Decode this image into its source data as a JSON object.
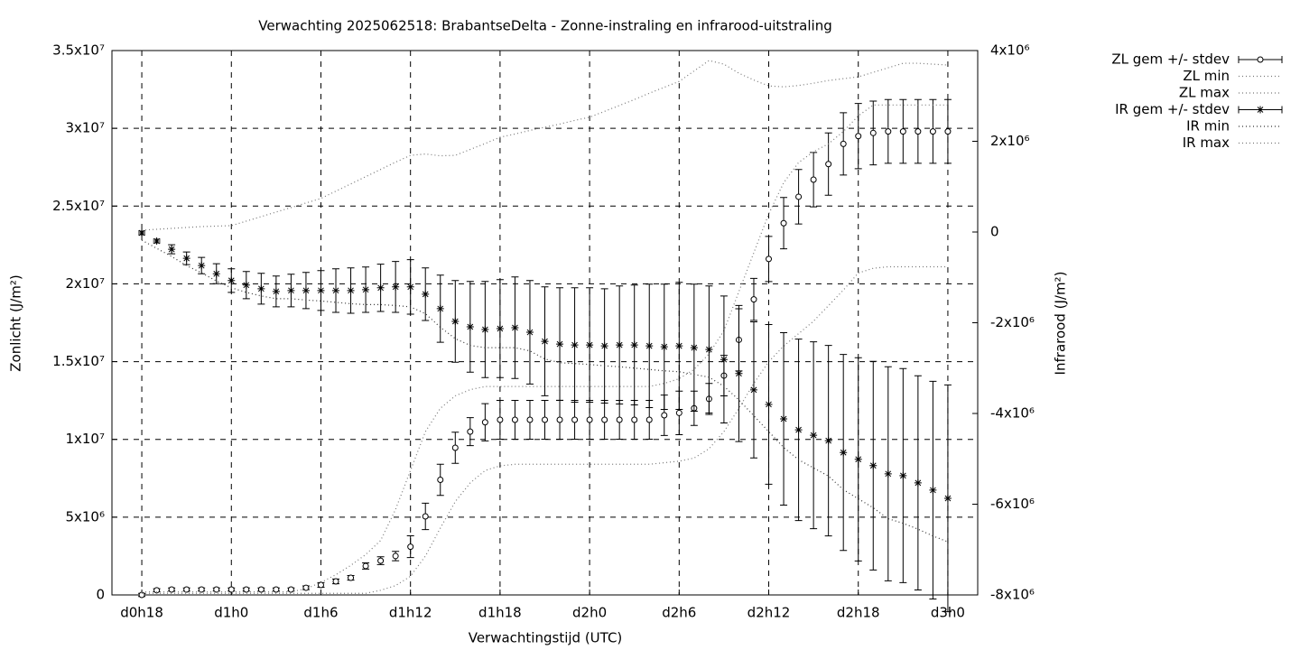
{
  "chart_data": {
    "type": "errorbar-line",
    "title": "Verwachting 2025062518: BrabantseDelta - Zonne-instraling en infrarood-uitstraling",
    "x_label": "Verwachtingstijd (UTC)",
    "y_label": "Zonlicht (J/m²)",
    "y2_label": "Infrarood (J/m²)",
    "grid": true,
    "legend": "outside-top-right",
    "x": [
      18,
      19,
      20,
      21,
      22,
      23,
      24,
      25,
      26,
      27,
      28,
      29,
      30,
      31,
      32,
      33,
      34,
      35,
      36,
      37,
      38,
      39,
      40,
      41,
      42,
      43,
      44,
      45,
      46,
      47,
      48,
      49,
      50,
      51,
      52,
      53,
      54,
      55,
      56,
      57,
      58,
      59,
      60,
      61,
      62,
      63,
      64,
      65,
      66,
      67,
      68,
      69,
      70,
      71,
      72
    ],
    "xlim": [
      16,
      74
    ],
    "xticks": [
      {
        "value": 18,
        "label": "d0h18"
      },
      {
        "value": 24,
        "label": "d1h0"
      },
      {
        "value": 30,
        "label": "d1h6"
      },
      {
        "value": 36,
        "label": "d1h12"
      },
      {
        "value": 42,
        "label": "d1h18"
      },
      {
        "value": 48,
        "label": "d2h0"
      },
      {
        "value": 54,
        "label": "d2h6"
      },
      {
        "value": 60,
        "label": "d2h12"
      },
      {
        "value": 66,
        "label": "d2h18"
      },
      {
        "value": 72,
        "label": "d3h0"
      }
    ],
    "ylim": [
      0,
      35000000.0
    ],
    "yticks": [
      0,
      {
        "value": 5000000.0,
        "label": "5x10⁶"
      },
      {
        "value": 10000000.0,
        "label": "1x10⁷"
      },
      {
        "value": 15000000.0,
        "label": "1.5x10⁷"
      },
      {
        "value": 20000000.0,
        "label": "2x10⁷"
      },
      {
        "value": 25000000.0,
        "label": "2.5x10⁷"
      },
      {
        "value": 30000000.0,
        "label": "3x10⁷"
      },
      {
        "value": 35000000.0,
        "label": "3.5x10⁷"
      }
    ],
    "y2lim": [
      -8000000.0,
      4000000.0
    ],
    "y2ticks": [
      {
        "value": -8000000.0,
        "label": "-8x10⁶"
      },
      {
        "value": -6000000.0,
        "label": "-6x10⁶"
      },
      {
        "value": -4000000.0,
        "label": "-4x10⁶"
      },
      {
        "value": -2000000.0,
        "label": "-2x10⁶"
      },
      0,
      {
        "value": 2000000.0,
        "label": "2x10⁶"
      },
      {
        "value": 4000000.0,
        "label": "4x10⁶"
      }
    ],
    "series": [
      {
        "name": "ZL gem +/- stdev",
        "color": "#000000",
        "marker": "circle",
        "values": [
          0,
          300000.0,
          350000.0,
          350000.0,
          350000.0,
          350000.0,
          350000.0,
          350000.0,
          350000.0,
          350000.0,
          350000.0,
          460000.0,
          640000.0,
          870000.0,
          1100000.0,
          1860000.0,
          2200000.0,
          2500000.0,
          3100000.0,
          5050000.0,
          7400000.0,
          9460000.0,
          10500000.0,
          11100000.0,
          11260000.0,
          11260000.0,
          11260000.0,
          11260000.0,
          11260000.0,
          11260000.0,
          11260000.0,
          11260000.0,
          11260000.0,
          11260000.0,
          11260000.0,
          11550000.0,
          11700000.0,
          12000000.0,
          12600000.0,
          14100000.0,
          16400000.0,
          19000000.0,
          21600000.0,
          23900000.0,
          25600000.0,
          26700000.0,
          27700000.0,
          29000000.0,
          29500000.0,
          29700000.0,
          29800000.0,
          29800000.0,
          29800000.0,
          29800000.0,
          29800000.0
        ],
        "errors": [
          100000.0,
          100000.0,
          100000.0,
          100000.0,
          100000.0,
          100000.0,
          100000.0,
          100000.0,
          100000.0,
          100000.0,
          100000.0,
          120000.0,
          150000.0,
          150000.0,
          150000.0,
          200000.0,
          250000.0,
          300000.0,
          700000.0,
          850000.0,
          1000000.0,
          1000000.0,
          900000.0,
          1200000.0,
          1250000.0,
          1250000.0,
          1250000.0,
          1250000.0,
          1250000.0,
          1250000.0,
          1250000.0,
          1250000.0,
          1250000.0,
          1250000.0,
          1250000.0,
          1300000.0,
          1400000.0,
          1100000.0,
          1000000.0,
          1300000.0,
          2000000.0,
          1350000.0,
          1450000.0,
          1650000.0,
          1750000.0,
          1750000.0,
          2000000.0,
          2000000.0,
          2100000.0,
          2050000.0,
          2050000.0,
          2050000.0,
          2050000.0,
          2050000.0,
          2050000.0
        ]
      },
      {
        "name": "ZL min",
        "color": "#777777",
        "line_style": "dotted",
        "values": [
          100000.0,
          100000.0,
          100000.0,
          100000.0,
          100000.0,
          100000.0,
          100000.0,
          100000.0,
          100000.0,
          100000.0,
          100000.0,
          100000.0,
          100000.0,
          100000.0,
          100000.0,
          100000.0,
          300000.0,
          600000.0,
          1200000.0,
          2500000.0,
          4300000.0,
          6000000.0,
          7200000.0,
          8000000.0,
          8300000.0,
          8400000.0,
          8400000.0,
          8400000.0,
          8400000.0,
          8400000.0,
          8400000.0,
          8400000.0,
          8400000.0,
          8400000.0,
          8400000.0,
          8500000.0,
          8600000.0,
          8800000.0,
          9400000.0,
          10500000.0,
          12000000.0,
          13600000.0,
          15000000.0,
          16000000.0,
          16800000.0,
          17600000.0,
          18600000.0,
          19600000.0,
          20700000.0,
          21000000.0,
          21100000.0,
          21100000.0,
          21100000.0,
          21100000.0,
          21100000.0
        ]
      },
      {
        "name": "ZL max",
        "color": "#777777",
        "line_style": "dotted",
        "values": [
          200000.0,
          200000.0,
          200000.0,
          200000.0,
          200000.0,
          200000.0,
          200000.0,
          200000.0,
          200000.0,
          200000.0,
          200000.0,
          400000.0,
          800000.0,
          1300000.0,
          1900000.0,
          2600000.0,
          3500000.0,
          5500000.0,
          8000000.0,
          10500000.0,
          12000000.0,
          12800000.0,
          13200000.0,
          13400000.0,
          13400000.0,
          13400000.0,
          13400000.0,
          13400000.0,
          13400000.0,
          13400000.0,
          13400000.0,
          13400000.0,
          13400000.0,
          13400000.0,
          13400000.0,
          13600000.0,
          13900000.0,
          14500000.0,
          15500000.0,
          17000000.0,
          19500000.0,
          22000000.0,
          24500000.0,
          26500000.0,
          27800000.0,
          28500000.0,
          29000000.0,
          29800000.0,
          30800000.0,
          31500000.0,
          31500000.0,
          31500000.0,
          31500000.0,
          31500000.0,
          31500000.0
        ]
      },
      {
        "name": "IR gem +/- stdev",
        "color": "#000000",
        "marker": "star",
        "axis": "y2",
        "values": [
          -20000.0,
          -200000.0,
          -380000.0,
          -580000.0,
          -740000.0,
          -920000.0,
          -1070000.0,
          -1170000.0,
          -1250000.0,
          -1310000.0,
          -1290000.0,
          -1290000.0,
          -1290000.0,
          -1290000.0,
          -1290000.0,
          -1270000.0,
          -1230000.0,
          -1210000.0,
          -1210000.0,
          -1370000.0,
          -1690000.0,
          -1970000.0,
          -2090000.0,
          -2150000.0,
          -2130000.0,
          -2110000.0,
          -2210000.0,
          -2410000.0,
          -2470000.0,
          -2490000.0,
          -2490000.0,
          -2510000.0,
          -2490000.0,
          -2490000.0,
          -2510000.0,
          -2530000.0,
          -2510000.0,
          -2550000.0,
          -2590000.0,
          -2810000.0,
          -3120000.0,
          -3480000.0,
          -3800000.0,
          -4120000.0,
          -4360000.0,
          -4480000.0,
          -4600000.0,
          -4860000.0,
          -5010000.0,
          -5150000.0,
          -5330000.0,
          -5370000.0,
          -5530000.0,
          -5690000.0,
          -5870000.0
        ],
        "errors": [
          40000.0,
          40000.0,
          100000.0,
          140000.0,
          180000.0,
          220000.0,
          260000.0,
          300000.0,
          340000.0,
          340000.0,
          360000.0,
          400000.0,
          440000.0,
          480000.0,
          500000.0,
          500000.0,
          520000.0,
          560000.0,
          600000.0,
          580000.0,
          740000.0,
          900000.0,
          1000000.0,
          1060000.0,
          1080000.0,
          1120000.0,
          1140000.0,
          1200000.0,
          1240000.0,
          1260000.0,
          1260000.0,
          1260000.0,
          1300000.0,
          1320000.0,
          1360000.0,
          1380000.0,
          1400000.0,
          1400000.0,
          1400000.0,
          1400000.0,
          1500000.0,
          1500000.0,
          1760000.0,
          1900000.0,
          2000000.0,
          2060000.0,
          2100000.0,
          2160000.0,
          2240000.0,
          2300000.0,
          2360000.0,
          2360000.0,
          2360000.0,
          2400000.0,
          2500000.0
        ]
      },
      {
        "name": "IR min",
        "color": "#333333",
        "line_style": "dotted",
        "axis": "y2",
        "values": [
          -180000.0,
          -360000.0,
          -540000.0,
          -740000.0,
          -900000.0,
          -1080000.0,
          -1230000.0,
          -1330000.0,
          -1410000.0,
          -1470000.0,
          -1470000.0,
          -1500000.0,
          -1520000.0,
          -1550000.0,
          -1580000.0,
          -1600000.0,
          -1600000.0,
          -1620000.0,
          -1650000.0,
          -1800000.0,
          -2100000.0,
          -2350000.0,
          -2500000.0,
          -2550000.0,
          -2550000.0,
          -2550000.0,
          -2620000.0,
          -2800000.0,
          -2880000.0,
          -2900000.0,
          -2920000.0,
          -2950000.0,
          -2970000.0,
          -3000000.0,
          -3030000.0,
          -3060000.0,
          -3080000.0,
          -3140000.0,
          -3200000.0,
          -3400000.0,
          -3700000.0,
          -4050000.0,
          -4400000.0,
          -4750000.0,
          -5020000.0,
          -5200000.0,
          -5380000.0,
          -5680000.0,
          -5880000.0,
          -6080000.0,
          -6320000.0,
          -6420000.0,
          -6550000.0,
          -6700000.0,
          -6830000.0
        ]
      },
      {
        "name": "IR max",
        "color": "#777777",
        "line_style": "dotted",
        "axis": "y2",
        "values": [
          40000.0,
          60000.0,
          80000.0,
          100000.0,
          120000.0,
          130000.0,
          140000.0,
          240000.0,
          340000.0,
          440000.0,
          540000.0,
          640000.0,
          740000.0,
          900000.0,
          1060000.0,
          1220000.0,
          1380000.0,
          1540000.0,
          1690000.0,
          1720000.0,
          1680000.0,
          1690000.0,
          1820000.0,
          1950000.0,
          2090000.0,
          2160000.0,
          2240000.0,
          2310000.0,
          2380000.0,
          2460000.0,
          2530000.0,
          2660000.0,
          2790000.0,
          2920000.0,
          3060000.0,
          3190000.0,
          3320000.0,
          3550000.0,
          3780000.0,
          3700000.0,
          3500000.0,
          3350000.0,
          3220000.0,
          3200000.0,
          3230000.0,
          3280000.0,
          3340000.0,
          3380000.0,
          3420000.0,
          3520000.0,
          3620000.0,
          3720000.0,
          3720000.0,
          3700000.0,
          3680000.0
        ]
      }
    ]
  }
}
